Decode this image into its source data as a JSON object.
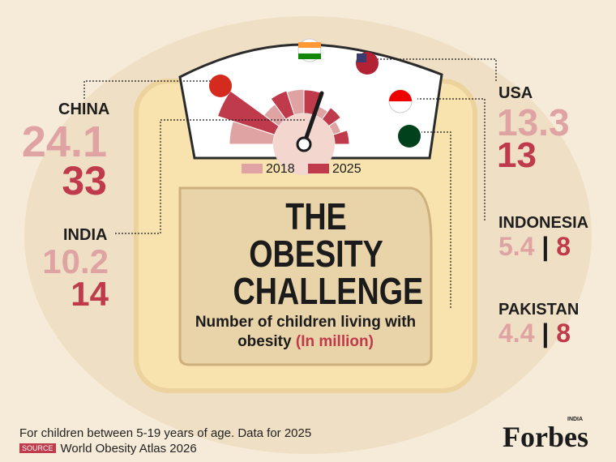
{
  "chart_data": {
    "type": "radial_bar",
    "title": "THE OBESITY CHALLENGE",
    "subtitle": "Number of children living with obesity",
    "unit": "(In million)",
    "categories": [
      "CHINA",
      "INDIA",
      "USA",
      "INDONESIA",
      "PAKISTAN"
    ],
    "series": [
      {
        "name": "2018",
        "color": "#dfa3a3",
        "values": [
          24.1,
          10.2,
          13.3,
          5.4,
          4.4
        ]
      },
      {
        "name": "2025",
        "color": "#bf3a4b",
        "values": [
          33,
          14,
          13,
          8,
          8
        ]
      }
    ],
    "footnote": "For children between 5-19 years of age. Data for 2025",
    "source_label": "SOURCE",
    "source": "World Obesity Atlas 2026",
    "brand": "Forbes",
    "brand_edition": "INDIA"
  }
}
